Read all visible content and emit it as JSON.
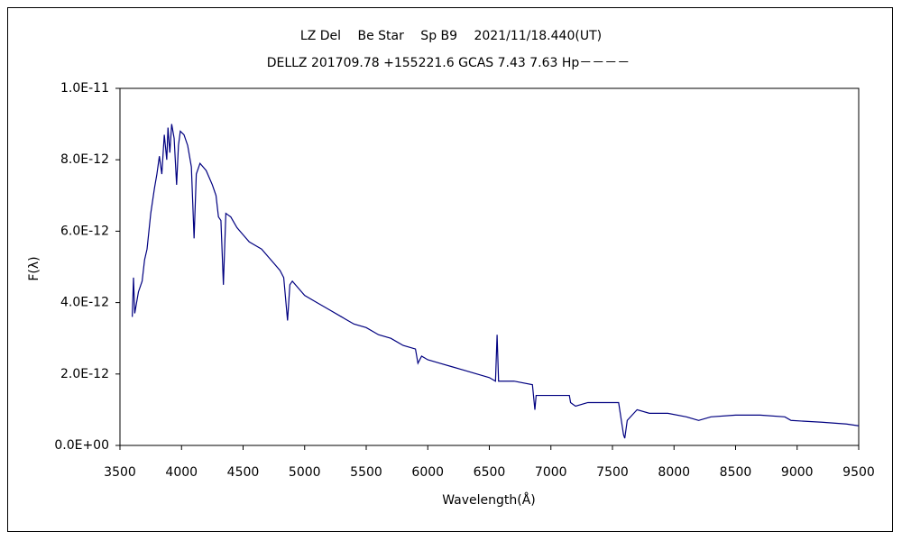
{
  "chart_data": {
    "type": "line",
    "title": "LZ Del　 Be Star　 Sp B9　 2021/11/18.440(UT)",
    "subtitle": "DELLZ 201709.78 +155221.6 GCAS 7.43 7.63 Hp－－－－",
    "x_label": "Wavelength(Å)",
    "y_label": "F(λ)",
    "color": "#000080",
    "xlim": [
      3500,
      9500
    ],
    "xticks": [
      3500,
      4000,
      4500,
      5000,
      5500,
      6000,
      6500,
      7000,
      7500,
      8000,
      8500,
      9000,
      9500
    ],
    "ylim": [
      0,
      1e-11
    ],
    "yticks": [
      {
        "value": 0,
        "label": "0.0E+00"
      },
      {
        "value": 2e-12,
        "label": "2.0E-12"
      },
      {
        "value": 4e-12,
        "label": "4.0E-12"
      },
      {
        "value": 6e-12,
        "label": "6.0E-12"
      },
      {
        "value": 8e-12,
        "label": "8.0E-12"
      },
      {
        "value": 1e-11,
        "label": "1.0E-11"
      }
    ],
    "grid": false,
    "x": [
      3600,
      3610,
      3620,
      3650,
      3680,
      3700,
      3720,
      3750,
      3780,
      3800,
      3820,
      3840,
      3860,
      3880,
      3890,
      3905,
      3920,
      3940,
      3960,
      3975,
      3990,
      4020,
      4050,
      4080,
      4102,
      4120,
      4150,
      4200,
      4250,
      4280,
      4300,
      4320,
      4340,
      4360,
      4400,
      4450,
      4500,
      4550,
      4600,
      4650,
      4700,
      4750,
      4800,
      4830,
      4861,
      4880,
      4900,
      4950,
      5000,
      5100,
      5200,
      5300,
      5400,
      5500,
      5600,
      5700,
      5800,
      5900,
      5920,
      5950,
      6000,
      6100,
      6200,
      6300,
      6400,
      6500,
      6550,
      6563,
      6575,
      6700,
      6850,
      6870,
      6880,
      7000,
      7150,
      7160,
      7200,
      7300,
      7400,
      7550,
      7590,
      7600,
      7620,
      7700,
      7800,
      7950,
      8100,
      8200,
      8300,
      8500,
      8700,
      8900,
      8950,
      9200,
      9400,
      9500
    ],
    "values": [
      3.6e-12,
      4.7e-12,
      3.7e-12,
      4.3e-12,
      4.6e-12,
      5.2e-12,
      5.5e-12,
      6.5e-12,
      7.2e-12,
      7.6e-12,
      8.1e-12,
      7.6e-12,
      8.7e-12,
      8e-12,
      8.9e-12,
      8.2e-12,
      9e-12,
      8.6e-12,
      7.3e-12,
      8.4e-12,
      8.8e-12,
      8.7e-12,
      8.4e-12,
      7.8e-12,
      5.8e-12,
      7.6e-12,
      7.9e-12,
      7.7e-12,
      7.3e-12,
      7e-12,
      6.4e-12,
      6.3e-12,
      4.5e-12,
      6.5e-12,
      6.4e-12,
      6.1e-12,
      5.9e-12,
      5.7e-12,
      5.6e-12,
      5.5e-12,
      5.3e-12,
      5.1e-12,
      4.9e-12,
      4.7e-12,
      3.5e-12,
      4.5e-12,
      4.6e-12,
      4.4e-12,
      4.2e-12,
      4e-12,
      3.8e-12,
      3.6e-12,
      3.4e-12,
      3.3e-12,
      3.1e-12,
      3e-12,
      2.8e-12,
      2.7e-12,
      2.3e-12,
      2.5e-12,
      2.4e-12,
      2.3e-12,
      2.2e-12,
      2.1e-12,
      2e-12,
      1.9e-12,
      1.8e-12,
      3.1e-12,
      1.8e-12,
      1.8e-12,
      1.7e-12,
      1e-12,
      1.4e-12,
      1.4e-12,
      1.4e-12,
      1.2e-12,
      1.1e-12,
      1.2e-12,
      1.2e-12,
      1.2e-12,
      3e-13,
      2e-13,
      7e-13,
      1e-12,
      9e-13,
      9e-13,
      8e-13,
      7e-13,
      8e-13,
      8.5e-13,
      8.5e-13,
      8e-13,
      7e-13,
      6.5e-13,
      6e-13,
      5.5e-13
    ]
  }
}
